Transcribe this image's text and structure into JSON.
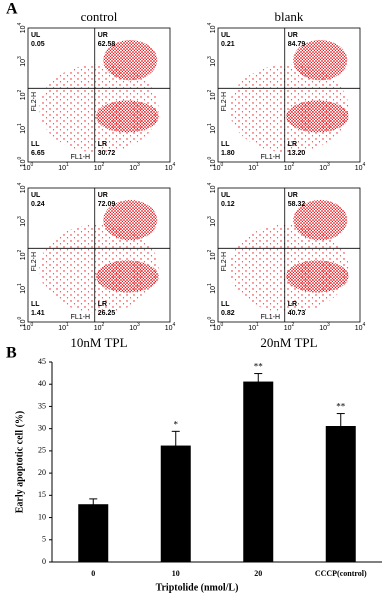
{
  "panel_a": {
    "label": "A",
    "x_axis_label": "FL1-H",
    "y_axis_label": "FL2-H",
    "tick_base": "10",
    "tick_exponents": [
      "0",
      "1",
      "2",
      "3",
      "4"
    ],
    "plots": [
      {
        "title": "control",
        "quadrants": [
          {
            "name": "UL",
            "value": "0.05"
          },
          {
            "name": "UR",
            "value": "62.58"
          },
          {
            "name": "LL",
            "value": "6.65"
          },
          {
            "name": "LR",
            "value": "30.72"
          }
        ]
      },
      {
        "title": "blank",
        "quadrants": [
          {
            "name": "UL",
            "value": "0.21"
          },
          {
            "name": "UR",
            "value": "84.79"
          },
          {
            "name": "LL",
            "value": "1.80"
          },
          {
            "name": "LR",
            "value": "13.20"
          }
        ]
      },
      {
        "title": "10nM TPL",
        "quadrants": [
          {
            "name": "UL",
            "value": "0.24"
          },
          {
            "name": "UR",
            "value": "72.09"
          },
          {
            "name": "LL",
            "value": "1.41"
          },
          {
            "name": "LR",
            "value": "26.25"
          }
        ]
      },
      {
        "title": "20nM TPL",
        "quadrants": [
          {
            "name": "UL",
            "value": "0.12"
          },
          {
            "name": "UR",
            "value": "58.32"
          },
          {
            "name": "LL",
            "value": "0.82"
          },
          {
            "name": "LR",
            "value": "40.73"
          }
        ]
      }
    ]
  },
  "chart_data": {
    "type": "bar",
    "label": "B",
    "ylabel": "Early apoptotic cell (%)",
    "xlabel": "Triptolide (nmol/L)",
    "categories": [
      "0",
      "10",
      "20",
      "CCCP(control)"
    ],
    "values": [
      13,
      26.2,
      40.6,
      30.6
    ],
    "errors": [
      1.2,
      3.2,
      1.8,
      2.8
    ],
    "significance": [
      null,
      "*",
      "**",
      "**"
    ],
    "color": "#000000",
    "ylim": [
      0,
      45
    ],
    "yticks": [
      0,
      5,
      10,
      15,
      20,
      25,
      30,
      35,
      40,
      45
    ]
  }
}
